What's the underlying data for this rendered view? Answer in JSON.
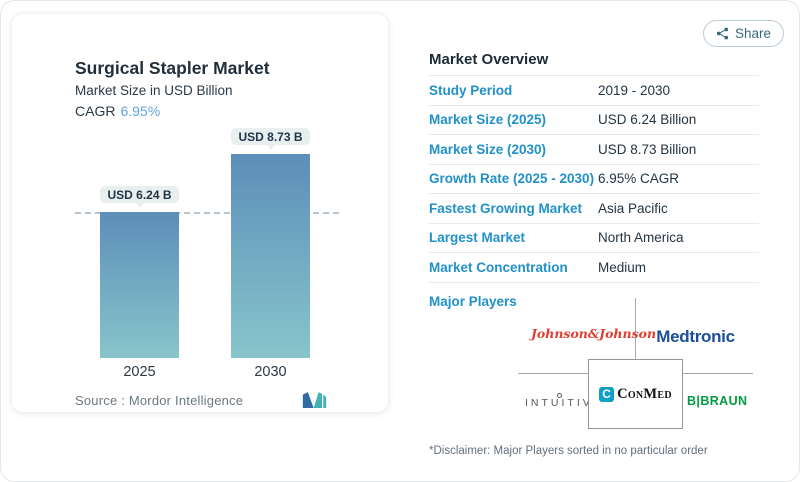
{
  "share": {
    "label": "Share",
    "icon": "share-nodes-icon"
  },
  "chart": {
    "title": "Surgical Stapler Market",
    "subtitle": "Market Size in USD Billion",
    "cagr_label": "CAGR",
    "cagr_value": "6.95%",
    "source": "Source :  Mordor Intelligence",
    "logo": "mordor-intelligence-logo"
  },
  "chart_data": {
    "type": "bar",
    "title": "Surgical Stapler Market",
    "ylabel": "Market Size in USD Billion",
    "categories": [
      "2025",
      "2030"
    ],
    "values": [
      6.24,
      8.73
    ],
    "bar_labels": [
      "USD 6.24 B",
      "USD 8.73 B"
    ],
    "reference_line": 6.24,
    "grid": false,
    "colors": {
      "bar_top": "#5d8eb9",
      "bar_bottom": "#87c5cb",
      "dashed_line": "#b7c5ce"
    }
  },
  "overview": {
    "heading": "Market Overview",
    "rows": [
      {
        "label": "Study Period",
        "value": "2019 - 2030"
      },
      {
        "label": "Market Size (2025)",
        "value": "USD 6.24 Billion"
      },
      {
        "label": "Market Size (2030)",
        "value": "USD 8.73 Billion"
      },
      {
        "label": "Growth Rate (2025 - 2030)",
        "value": "6.95% CAGR"
      },
      {
        "label": "Fastest Growing Market",
        "value": "Asia Pacific"
      },
      {
        "label": "Largest Market",
        "value": "North America"
      },
      {
        "label": "Market Concentration",
        "value": "Medium"
      }
    ],
    "major_players_label": "Major Players",
    "players": [
      {
        "name": "Johnson & Johnson",
        "display": "Johnson&Johnson",
        "color": "#e23d31"
      },
      {
        "name": "Medtronic",
        "display": "Medtronic",
        "color": "#1b4e9b"
      },
      {
        "name": "Intuitive",
        "display": "INTUITIVE",
        "color": "#55585b"
      },
      {
        "name": "ConMed",
        "display": "ConMed",
        "icon_glyph": "C",
        "color": "#0ba0c8"
      },
      {
        "name": "B. Braun",
        "display": "B|BRAUN",
        "color": "#009b41"
      }
    ],
    "disclaimer": "*Disclaimer: Major Players sorted in no particular order"
  }
}
